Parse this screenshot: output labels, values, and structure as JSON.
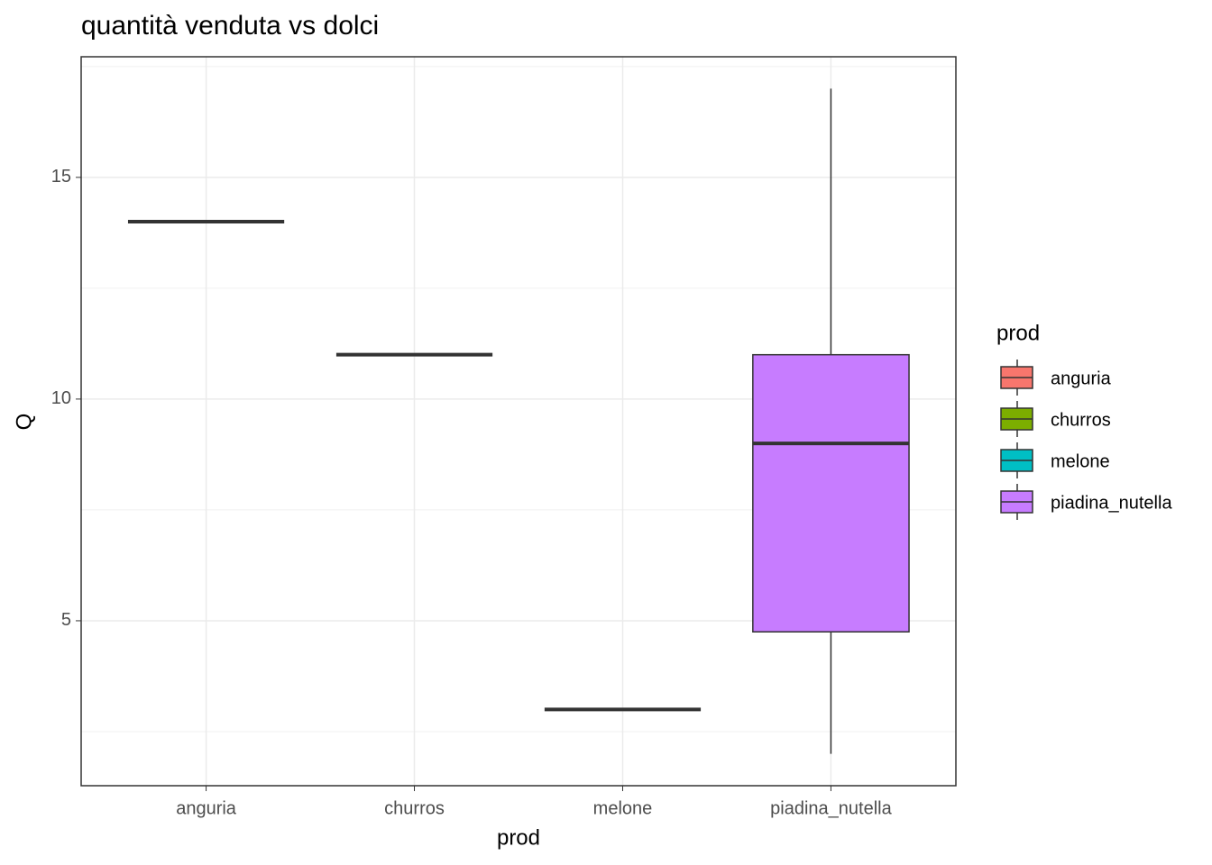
{
  "chart_data": {
    "type": "box",
    "title": "quantità venduta vs dolci",
    "x_label": "prod",
    "y_label": "Q",
    "legend_title": "prod",
    "categories": [
      "anguria",
      "churros",
      "melone",
      "piadina_nutella"
    ],
    "colors": [
      "#F8766D",
      "#7CAE00",
      "#00BFC4",
      "#C77CFF"
    ],
    "boxes": [
      {
        "min": 14,
        "q1": 14,
        "median": 14,
        "q3": 14,
        "max": 14
      },
      {
        "min": 11,
        "q1": 11,
        "median": 11,
        "q3": 11,
        "max": 11
      },
      {
        "min": 3,
        "q1": 3,
        "median": 3,
        "q3": 3,
        "max": 3
      },
      {
        "min": 2,
        "q1": 4.75,
        "median": 9,
        "q3": 11,
        "max": 17
      }
    ],
    "ylim": [
      1.28,
      17.72
    ],
    "yticks": [
      5,
      10,
      15
    ],
    "y_minor_grid": [
      2.5,
      7.5,
      12.5,
      17.5
    ],
    "grid": true
  }
}
